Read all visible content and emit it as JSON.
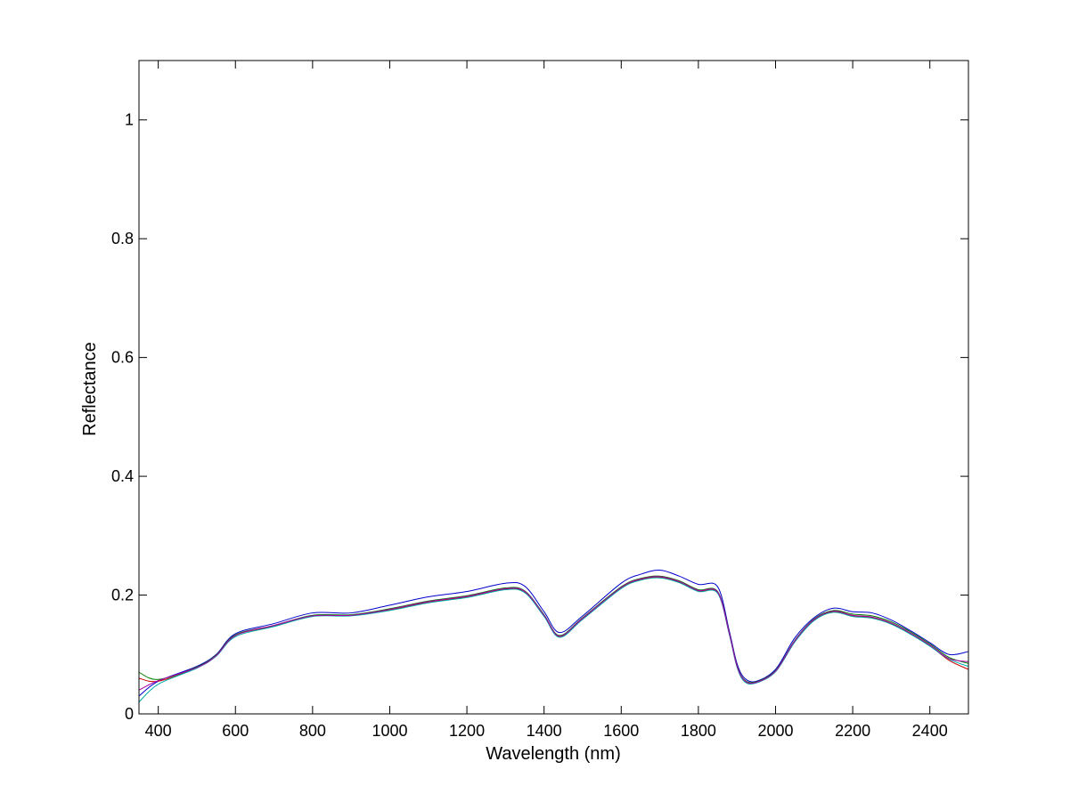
{
  "chart_data": {
    "type": "line",
    "title": "",
    "xlabel": "Wavelength (nm)",
    "ylabel": "Reflectance",
    "xlim": [
      350,
      2500
    ],
    "ylim": [
      0,
      1.1
    ],
    "x_ticks": [
      400,
      600,
      800,
      1000,
      1200,
      1400,
      1600,
      1800,
      2000,
      2200,
      2400
    ],
    "x_tick_labels": [
      "400",
      "600",
      "800",
      "1000",
      "1200",
      "1400",
      "1600",
      "1800",
      "2000",
      "2200",
      "2400"
    ],
    "y_ticks": [
      0,
      0.2,
      0.4,
      0.6,
      0.8,
      1
    ],
    "y_tick_labels": [
      "0",
      "0.2",
      "0.4",
      "0.6",
      "0.8",
      "1"
    ],
    "grid": false,
    "legend": "none",
    "x": [
      350,
      400,
      500,
      550,
      600,
      700,
      800,
      900,
      1000,
      1100,
      1200,
      1300,
      1350,
      1400,
      1440,
      1500,
      1600,
      1650,
      1700,
      1750,
      1800,
      1850,
      1880,
      1900,
      1920,
      1950,
      2000,
      2050,
      2100,
      2150,
      2200,
      2250,
      2300,
      2350,
      2400,
      2450,
      2500
    ],
    "series": [
      {
        "color": "#0000cc",
        "values": [
          0.03,
          0.055,
          0.08,
          0.1,
          0.135,
          0.152,
          0.17,
          0.17,
          0.183,
          0.197,
          0.206,
          0.22,
          0.215,
          0.172,
          0.137,
          0.165,
          0.22,
          0.235,
          0.242,
          0.232,
          0.218,
          0.214,
          0.14,
          0.085,
          0.06,
          0.055,
          0.075,
          0.128,
          0.162,
          0.178,
          0.172,
          0.17,
          0.158,
          0.14,
          0.12,
          0.1,
          0.105
        ]
      },
      {
        "color": "#cc0000",
        "values": [
          0.06,
          0.055,
          0.078,
          0.098,
          0.132,
          0.148,
          0.165,
          0.166,
          0.175,
          0.188,
          0.197,
          0.21,
          0.205,
          0.165,
          0.13,
          0.16,
          0.212,
          0.226,
          0.23,
          0.222,
          0.207,
          0.204,
          0.135,
          0.08,
          0.055,
          0.053,
          0.072,
          0.122,
          0.158,
          0.172,
          0.165,
          0.162,
          0.152,
          0.135,
          0.115,
          0.09,
          0.075
        ]
      },
      {
        "color": "#008000",
        "values": [
          0.07,
          0.058,
          0.079,
          0.099,
          0.133,
          0.149,
          0.166,
          0.167,
          0.177,
          0.19,
          0.199,
          0.212,
          0.207,
          0.167,
          0.132,
          0.162,
          0.214,
          0.228,
          0.232,
          0.224,
          0.209,
          0.206,
          0.137,
          0.082,
          0.057,
          0.054,
          0.073,
          0.124,
          0.16,
          0.174,
          0.168,
          0.165,
          0.155,
          0.138,
          0.118,
          0.095,
          0.085
        ]
      },
      {
        "color": "#00aaaa",
        "values": [
          0.02,
          0.05,
          0.077,
          0.097,
          0.13,
          0.147,
          0.164,
          0.165,
          0.174,
          0.187,
          0.196,
          0.209,
          0.204,
          0.164,
          0.129,
          0.159,
          0.211,
          0.225,
          0.229,
          0.221,
          0.206,
          0.203,
          0.134,
          0.079,
          0.054,
          0.052,
          0.071,
          0.121,
          0.157,
          0.171,
          0.164,
          0.161,
          0.151,
          0.134,
          0.114,
          0.092,
          0.08
        ]
      },
      {
        "color": "#aa00aa",
        "values": [
          0.04,
          0.056,
          0.078,
          0.098,
          0.132,
          0.149,
          0.165,
          0.166,
          0.176,
          0.189,
          0.198,
          0.211,
          0.206,
          0.166,
          0.131,
          0.161,
          0.213,
          0.227,
          0.231,
          0.223,
          0.208,
          0.205,
          0.136,
          0.081,
          0.056,
          0.053,
          0.072,
          0.123,
          0.159,
          0.173,
          0.166,
          0.163,
          0.153,
          0.136,
          0.116,
          0.093,
          0.088
        ]
      }
    ]
  }
}
